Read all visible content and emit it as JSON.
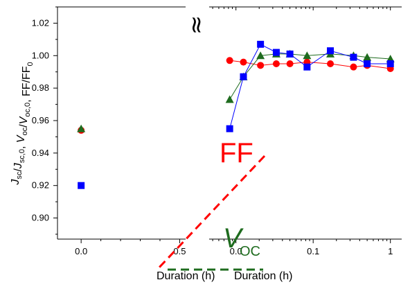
{
  "chart_data": {
    "type": "scatter",
    "y_label": {
      "parts": [
        {
          "text": "J",
          "italic": true
        },
        {
          "text": "sc",
          "sub": true
        },
        {
          "text": "/",
          "italic": false
        },
        {
          "text": "J",
          "italic": true
        },
        {
          "text": "sc,0",
          "sub": true
        },
        {
          "text": ", ",
          "italic": false
        },
        {
          "text": "V",
          "italic": true
        },
        {
          "text": "oc",
          "sub": true
        },
        {
          "text": "/",
          "italic": false
        },
        {
          "text": "V",
          "italic": true
        },
        {
          "text": "oc,0",
          "sub": true
        },
        {
          "text": ", FF/FF",
          "italic": false
        },
        {
          "text": "0",
          "sub": true
        }
      ]
    },
    "ylim": [
      0.887,
      1.03
    ],
    "y_ticks": [
      "0.90",
      "0.92",
      "0.94",
      "0.96",
      "0.98",
      "1.00",
      "1.02"
    ],
    "left_panel": {
      "xlabel": "Duration (h)",
      "xlim": [
        -0.12,
        1.05
      ],
      "x_ticks": [
        "0.0",
        "0.5"
      ],
      "series": [
        {
          "marker": "circle",
          "color": "#ff0000",
          "points": [
            [
              0.0,
              0.954
            ]
          ]
        },
        {
          "marker": "triangle",
          "color": "#1e6b1e",
          "points": [
            [
              0.0,
              0.955
            ]
          ]
        },
        {
          "marker": "square",
          "color": "#0000ff",
          "points": [
            [
              0.0,
              0.92
            ]
          ]
        }
      ]
    },
    "right_panel": {
      "xlabel": "Duration (h)",
      "x_scale": "log",
      "xlim": [
        0.0045,
        1.4
      ],
      "x_ticks": [
        "0.0",
        "0.1",
        "1"
      ],
      "series": [
        {
          "marker": "circle",
          "color": "#ff0000",
          "line_color": "#ff0000",
          "points": [
            [
              0.0083,
              0.997
            ],
            [
              0.0125,
              0.996
            ],
            [
              0.0208,
              0.994
            ],
            [
              0.0333,
              0.995
            ],
            [
              0.05,
              0.995
            ],
            [
              0.0833,
              0.996
            ],
            [
              0.167,
              0.995
            ],
            [
              0.333,
              0.993
            ],
            [
              0.5,
              0.994
            ],
            [
              1.0,
              0.992
            ]
          ]
        },
        {
          "marker": "triangle",
          "color": "#1e6b1e",
          "line_color": "#1e6b1e",
          "points": [
            [
              0.0083,
              0.973
            ],
            [
              0.0125,
              0.987
            ],
            [
              0.0208,
              1.0
            ],
            [
              0.0333,
              1.001
            ],
            [
              0.05,
              1.001
            ],
            [
              0.0833,
              1.0
            ],
            [
              0.167,
              1.001
            ],
            [
              0.333,
              1.0
            ],
            [
              0.5,
              0.999
            ],
            [
              1.0,
              0.998
            ]
          ]
        },
        {
          "marker": "square",
          "color": "#0000ff",
          "line_color": "#0000ff",
          "points": [
            [
              0.0083,
              0.955
            ],
            [
              0.0125,
              0.987
            ],
            [
              0.0208,
              1.007
            ],
            [
              0.0333,
              1.002
            ],
            [
              0.05,
              1.001
            ],
            [
              0.0833,
              0.993
            ],
            [
              0.167,
              1.003
            ],
            [
              0.333,
              0.999
            ],
            [
              0.5,
              0.995
            ],
            [
              1.0,
              0.995
            ]
          ]
        }
      ]
    },
    "break_symbol": "≈",
    "annotations": {
      "ff": "FF",
      "voc_main": "V",
      "voc_sub": "OC",
      "dashed_red": "#ff0000",
      "dashed_green": "#1e6b1e"
    }
  }
}
